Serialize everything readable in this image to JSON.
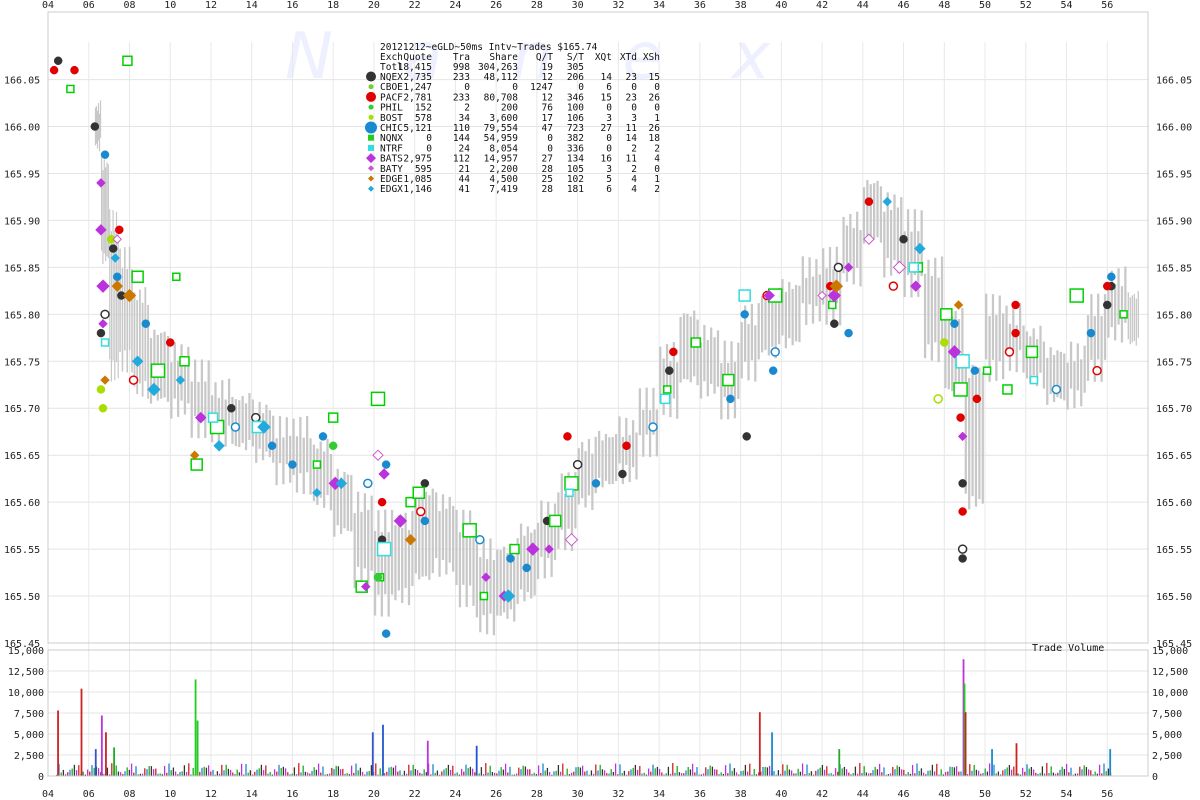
{
  "chart_data": {
    "type": "scatter",
    "title": "20121212~eGLD~50ms Intv~Trades $165.74",
    "watermark": "Nanex",
    "price_axis": {
      "ylim": [
        165.45,
        166.09
      ],
      "ticks": [
        "166.05",
        "166.00",
        "165.95",
        "165.90",
        "165.85",
        "165.80",
        "165.75",
        "165.70",
        "165.65",
        "165.60",
        "165.55",
        "165.50",
        "165.45"
      ]
    },
    "volume_axis": {
      "label": "Trade Volume",
      "ylim": [
        0,
        15000
      ],
      "ticks": [
        "15,000",
        "12,500",
        "10,000",
        "7,500",
        "5,000",
        "2,500",
        "0"
      ]
    },
    "x_axis": {
      "xlim": [
        4,
        58
      ],
      "ticks": [
        "04",
        "06",
        "08",
        "10",
        "12",
        "14",
        "16",
        "18",
        "20",
        "22",
        "24",
        "26",
        "28",
        "30",
        "32",
        "34",
        "36",
        "38",
        "40",
        "42",
        "44",
        "46",
        "48",
        "50",
        "52",
        "54",
        "56"
      ]
    },
    "table": {
      "headers": [
        "Exch",
        "Quote",
        "Tra",
        "Share",
        "Q/T",
        "S/T",
        "XQt",
        "XTd",
        "XSh"
      ],
      "total": [
        "Totl",
        "18,415",
        "998",
        "304,263",
        "19",
        "305",
        "",
        "",
        ""
      ],
      "rows": [
        [
          "NQEX",
          "2,735",
          "233",
          "48,112",
          "12",
          "206",
          "14",
          "23",
          "15"
        ],
        [
          "CBOE",
          "1,247",
          "0",
          "0",
          "1247",
          "0",
          "6",
          "0",
          "0"
        ],
        [
          "PACF",
          "2,781",
          "233",
          "80,708",
          "12",
          "346",
          "15",
          "23",
          "26"
        ],
        [
          "PHIL",
          "152",
          "2",
          "200",
          "76",
          "100",
          "0",
          "0",
          "0"
        ],
        [
          "BOST",
          "578",
          "34",
          "3,600",
          "17",
          "106",
          "3",
          "3",
          "1"
        ],
        [
          "CHIC",
          "5,121",
          "110",
          "79,554",
          "47",
          "723",
          "27",
          "11",
          "26"
        ],
        [
          "NQNX",
          "0",
          "144",
          "54,959",
          "0",
          "382",
          "0",
          "14",
          "18"
        ],
        [
          "NTRF",
          "0",
          "24",
          "8,054",
          "0",
          "336",
          "0",
          "2",
          "2"
        ],
        [
          "BATS",
          "2,975",
          "112",
          "14,957",
          "27",
          "134",
          "16",
          "11",
          "4"
        ],
        [
          "BATY",
          "595",
          "21",
          "2,200",
          "28",
          "105",
          "3",
          "2",
          "0"
        ],
        [
          "EDGE",
          "1,085",
          "44",
          "4,500",
          "25",
          "102",
          "5",
          "4",
          "1"
        ],
        [
          "EDGX",
          "1,146",
          "41",
          "7,419",
          "28",
          "181",
          "6",
          "4",
          "2"
        ]
      ]
    },
    "series": [
      {
        "name": "NQEX",
        "color": "#333333",
        "marker": "circle",
        "points": [
          [
            4.5,
            166.07
          ],
          [
            6.3,
            166.0
          ],
          [
            6.6,
            165.78
          ],
          [
            6.8,
            165.8
          ],
          [
            7.2,
            165.87
          ],
          [
            7.6,
            165.82
          ],
          [
            13,
            165.7
          ],
          [
            14.2,
            165.69
          ],
          [
            20.4,
            165.56
          ],
          [
            22.5,
            165.62
          ],
          [
            28.5,
            165.58
          ],
          [
            30,
            165.64
          ],
          [
            32.2,
            165.63
          ],
          [
            34.5,
            165.74
          ],
          [
            38.3,
            165.67
          ],
          [
            42.8,
            165.85
          ],
          [
            42.6,
            165.79
          ],
          [
            46,
            165.88
          ],
          [
            48.9,
            165.62
          ],
          [
            48.9,
            165.55
          ],
          [
            48.9,
            165.54
          ],
          [
            56.2,
            165.83
          ],
          [
            56,
            165.81
          ]
        ]
      },
      {
        "name": "PACF",
        "color": "#e00000",
        "marker": "circle",
        "points": [
          [
            4.3,
            166.06
          ],
          [
            5.3,
            166.06
          ],
          [
            7.5,
            165.89
          ],
          [
            8.2,
            165.73
          ],
          [
            10,
            165.77
          ],
          [
            11.5,
            165.69
          ],
          [
            20.4,
            165.6
          ],
          [
            22.3,
            165.59
          ],
          [
            29.5,
            165.67
          ],
          [
            32.4,
            165.66
          ],
          [
            34.7,
            165.76
          ],
          [
            39.3,
            165.82
          ],
          [
            39.8,
            165.82
          ],
          [
            42.4,
            165.83
          ],
          [
            44.3,
            165.92
          ],
          [
            45.5,
            165.83
          ],
          [
            48.8,
            165.69
          ],
          [
            48.9,
            165.59
          ],
          [
            49.6,
            165.71
          ],
          [
            51.2,
            165.76
          ],
          [
            51.5,
            165.81
          ],
          [
            51.5,
            165.78
          ],
          [
            56,
            165.83
          ],
          [
            55.5,
            165.74
          ]
        ]
      },
      {
        "name": "CHIC",
        "color": "#1a8ad0",
        "marker": "circle",
        "points": [
          [
            6.8,
            165.97
          ],
          [
            7.4,
            165.84
          ],
          [
            8.8,
            165.79
          ],
          [
            13.2,
            165.68
          ],
          [
            15,
            165.66
          ],
          [
            16,
            165.64
          ],
          [
            17.5,
            165.67
          ],
          [
            19.7,
            165.62
          ],
          [
            20.6,
            165.64
          ],
          [
            20.6,
            165.46
          ],
          [
            22.5,
            165.58
          ],
          [
            25.2,
            165.56
          ],
          [
            26.7,
            165.54
          ],
          [
            27.5,
            165.53
          ],
          [
            30.9,
            165.62
          ],
          [
            33.7,
            165.68
          ],
          [
            37.5,
            165.71
          ],
          [
            38.2,
            165.8
          ],
          [
            39.6,
            165.74
          ],
          [
            39.7,
            165.76
          ],
          [
            43.3,
            165.78
          ],
          [
            48.5,
            165.79
          ],
          [
            49.5,
            165.74
          ],
          [
            53.5,
            165.72
          ],
          [
            56.2,
            165.84
          ],
          [
            55.2,
            165.78
          ]
        ]
      },
      {
        "name": "NQNX",
        "color": "#00d000",
        "marker": "square_open",
        "points": [
          [
            5.1,
            166.04
          ],
          [
            7.9,
            166.07
          ],
          [
            8.4,
            165.84
          ],
          [
            9.4,
            165.74
          ],
          [
            10.3,
            165.84
          ],
          [
            10.7,
            165.75
          ],
          [
            11.3,
            165.64
          ],
          [
            12.3,
            165.68
          ],
          [
            17.2,
            165.64
          ],
          [
            18.0,
            165.69
          ],
          [
            19.4,
            165.51
          ],
          [
            20.2,
            165.71
          ],
          [
            20.3,
            165.52
          ],
          [
            21.8,
            165.6
          ],
          [
            22.2,
            165.61
          ],
          [
            24.7,
            165.57
          ],
          [
            25.4,
            165.5
          ],
          [
            26.9,
            165.55
          ],
          [
            28.9,
            165.58
          ],
          [
            29.7,
            165.62
          ],
          [
            34.4,
            165.72
          ],
          [
            35.8,
            165.77
          ],
          [
            37.4,
            165.73
          ],
          [
            39.7,
            165.82
          ],
          [
            42.5,
            165.81
          ],
          [
            46.7,
            165.85
          ],
          [
            48.1,
            165.8
          ],
          [
            48.8,
            165.72
          ],
          [
            50.1,
            165.74
          ],
          [
            51.1,
            165.72
          ],
          [
            52.3,
            165.76
          ],
          [
            54.5,
            165.82
          ],
          [
            56.8,
            165.8
          ]
        ]
      },
      {
        "name": "NTRF",
        "color": "#33dddd",
        "marker": "square_open",
        "points": [
          [
            6.8,
            165.77
          ],
          [
            12.1,
            165.69
          ],
          [
            14.3,
            165.68
          ],
          [
            20.5,
            165.55
          ],
          [
            29.6,
            165.61
          ],
          [
            34.3,
            165.71
          ],
          [
            38.2,
            165.82
          ],
          [
            48.9,
            165.75
          ],
          [
            52.4,
            165.73
          ],
          [
            46.5,
            165.85
          ]
        ]
      },
      {
        "name": "BATS",
        "color": "#bb33dd",
        "marker": "diamond",
        "points": [
          [
            6.6,
            165.94
          ],
          [
            6.6,
            165.89
          ],
          [
            6.7,
            165.83
          ],
          [
            6.7,
            165.79
          ],
          [
            11.5,
            165.69
          ],
          [
            18.1,
            165.62
          ],
          [
            19.6,
            165.51
          ],
          [
            20.5,
            165.63
          ],
          [
            21.3,
            165.58
          ],
          [
            25.5,
            165.52
          ],
          [
            26.4,
            165.5
          ],
          [
            27.8,
            165.55
          ],
          [
            28.6,
            165.55
          ],
          [
            39.4,
            165.82
          ],
          [
            42.6,
            165.82
          ],
          [
            43.3,
            165.85
          ],
          [
            46.6,
            165.83
          ],
          [
            48.5,
            165.76
          ],
          [
            48.9,
            165.67
          ]
        ]
      },
      {
        "name": "EDGE",
        "color": "#cc7700",
        "marker": "diamond",
        "points": [
          [
            6.8,
            165.73
          ],
          [
            7.4,
            165.83
          ],
          [
            8.0,
            165.82
          ],
          [
            11.2,
            165.65
          ],
          [
            21.8,
            165.56
          ],
          [
            42.7,
            165.83
          ],
          [
            48.7,
            165.81
          ]
        ]
      },
      {
        "name": "EDGX",
        "color": "#22aadd",
        "marker": "diamond",
        "points": [
          [
            7.3,
            165.86
          ],
          [
            8.4,
            165.75
          ],
          [
            9.2,
            165.72
          ],
          [
            10.5,
            165.73
          ],
          [
            12.4,
            165.66
          ],
          [
            14.6,
            165.68
          ],
          [
            17.2,
            165.61
          ],
          [
            18.4,
            165.62
          ],
          [
            26.6,
            165.5
          ],
          [
            45.2,
            165.92
          ],
          [
            46.8,
            165.87
          ]
        ]
      },
      {
        "name": "PHIL",
        "color": "#33cc33",
        "marker": "circle",
        "points": [
          [
            18.0,
            165.66
          ],
          [
            20.2,
            165.52
          ]
        ]
      },
      {
        "name": "BOST",
        "color": "#aadd00",
        "marker": "circle",
        "points": [
          [
            6.7,
            165.7
          ],
          [
            6.6,
            165.72
          ],
          [
            7.1,
            165.88
          ],
          [
            47.7,
            165.71
          ],
          [
            48.0,
            165.77
          ]
        ]
      },
      {
        "name": "BATY",
        "color": "#cc55cc",
        "marker": "diamond_open",
        "points": [
          [
            7.4,
            165.88
          ],
          [
            20.2,
            165.65
          ],
          [
            29.7,
            165.56
          ],
          [
            42.0,
            165.82
          ],
          [
            44.3,
            165.88
          ],
          [
            45.8,
            165.85
          ]
        ]
      }
    ],
    "gray_range": [
      [
        6.3,
        165.98,
        166.02
      ],
      [
        6.6,
        165.86,
        165.96
      ],
      [
        7.0,
        165.74,
        165.9
      ],
      [
        7.5,
        165.75,
        165.86
      ],
      [
        8.2,
        165.72,
        165.82
      ],
      [
        9.0,
        165.71,
        165.78
      ],
      [
        10.0,
        165.7,
        165.76
      ],
      [
        11.0,
        165.68,
        165.74
      ],
      [
        12.0,
        165.67,
        165.72
      ],
      [
        13.0,
        165.66,
        165.71
      ],
      [
        14.0,
        165.65,
        165.7
      ],
      [
        15.0,
        165.63,
        165.68
      ],
      [
        16.0,
        165.62,
        165.68
      ],
      [
        17.0,
        165.6,
        165.66
      ],
      [
        18.0,
        165.57,
        165.63
      ],
      [
        19.0,
        165.52,
        165.6
      ],
      [
        20.0,
        165.49,
        165.58
      ],
      [
        21.0,
        165.5,
        165.58
      ],
      [
        22.0,
        165.52,
        165.61
      ],
      [
        23.0,
        165.53,
        165.6
      ],
      [
        24.0,
        165.5,
        165.58
      ],
      [
        25.0,
        165.47,
        165.55
      ],
      [
        26.0,
        165.48,
        165.55
      ],
      [
        27.0,
        165.5,
        165.57
      ],
      [
        28.0,
        165.53,
        165.59
      ],
      [
        29.0,
        165.56,
        165.62
      ],
      [
        30.0,
        165.6,
        165.66
      ],
      [
        31.0,
        165.62,
        165.67
      ],
      [
        32.0,
        165.63,
        165.68
      ],
      [
        33.0,
        165.66,
        165.71
      ],
      [
        34.0,
        165.7,
        165.76
      ],
      [
        35.0,
        165.73,
        165.8
      ],
      [
        36.0,
        165.72,
        165.78
      ],
      [
        37.0,
        165.7,
        165.76
      ],
      [
        38.0,
        165.74,
        165.8
      ],
      [
        39.0,
        165.76,
        165.82
      ],
      [
        40.0,
        165.77,
        165.83
      ],
      [
        41.0,
        165.8,
        165.85
      ],
      [
        42.0,
        165.8,
        165.86
      ],
      [
        43.0,
        165.84,
        165.9
      ],
      [
        44.0,
        165.88,
        165.94
      ],
      [
        45.0,
        165.85,
        165.92
      ],
      [
        46.0,
        165.83,
        165.9
      ],
      [
        47.0,
        165.76,
        165.85
      ],
      [
        48.0,
        165.72,
        165.8
      ],
      [
        49.0,
        165.6,
        165.74
      ],
      [
        50.0,
        165.74,
        165.81
      ],
      [
        51.0,
        165.75,
        165.8
      ],
      [
        52.0,
        165.73,
        165.78
      ],
      [
        53.0,
        165.71,
        165.76
      ],
      [
        54.0,
        165.71,
        165.76
      ],
      [
        55.0,
        165.74,
        165.81
      ],
      [
        56.0,
        165.78,
        165.84
      ],
      [
        57.0,
        165.77,
        165.82
      ]
    ],
    "volume_spikes": [
      [
        4.45,
        7800,
        "#cc2222"
      ],
      [
        5.6,
        10400,
        "#cc2222"
      ],
      [
        6.3,
        3200,
        "#3355cc"
      ],
      [
        6.6,
        7200,
        "#bb33dd"
      ],
      [
        6.8,
        5200,
        "#cc2222"
      ],
      [
        7.2,
        3400,
        "#22aa22"
      ],
      [
        11.2,
        11500,
        "#22cc22"
      ],
      [
        11.3,
        6600,
        "#22cc22"
      ],
      [
        19.9,
        5200,
        "#3355cc"
      ],
      [
        20.4,
        6100,
        "#2255cc"
      ],
      [
        22.6,
        4200,
        "#bb33dd"
      ],
      [
        25.0,
        3600,
        "#2255cc"
      ],
      [
        38.9,
        7600,
        "#cc2222"
      ],
      [
        39.5,
        5200,
        "#1a8ad0"
      ],
      [
        42.8,
        3200,
        "#22aa22"
      ],
      [
        48.9,
        13900,
        "#bb33dd"
      ],
      [
        48.95,
        11000,
        "#22cc22"
      ],
      [
        49.0,
        7600,
        "#cc2222"
      ],
      [
        50.3,
        3200,
        "#1a8ad0"
      ],
      [
        51.5,
        3900,
        "#cc2222"
      ],
      [
        56.1,
        3200,
        "#1a8ad0"
      ]
    ]
  }
}
